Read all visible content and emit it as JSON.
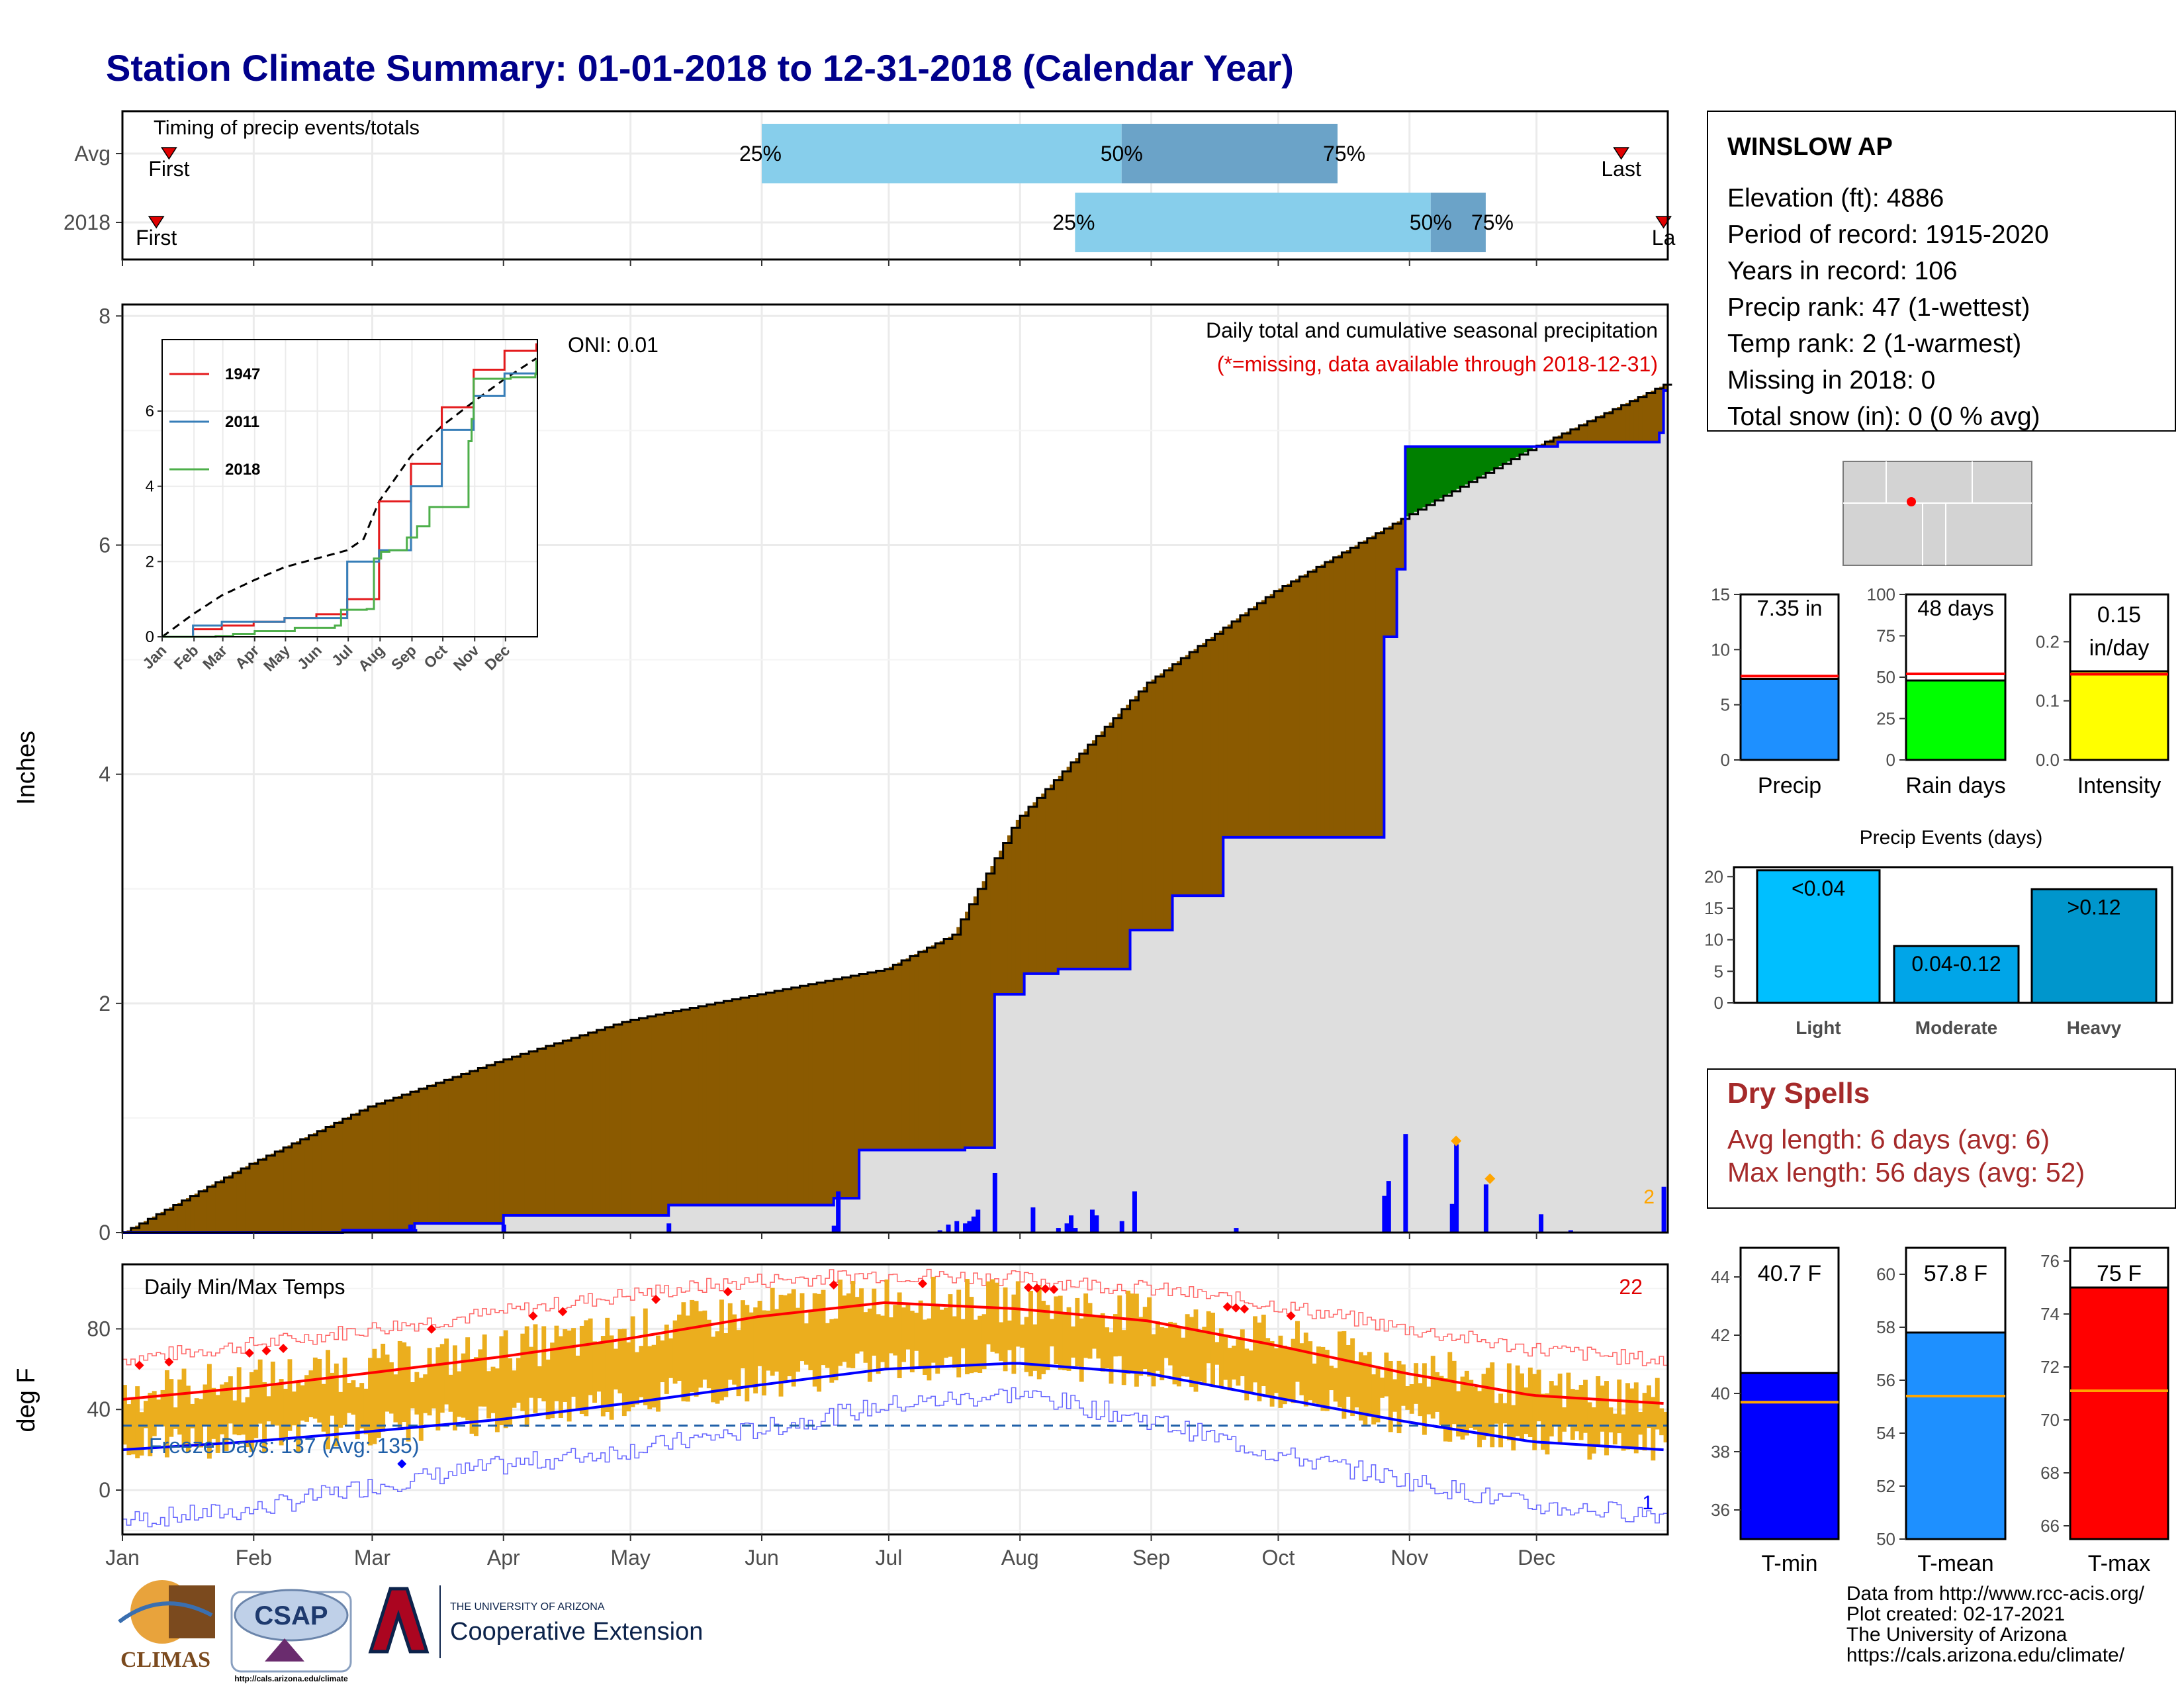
{
  "title": "Station Climate Summary: 01-01-2018 to 12-31-2018 (Calendar Year)",
  "timing_panel": {
    "label": "Timing of precip events/totals",
    "rows": [
      {
        "name": "Avg",
        "first_label": "First",
        "last_label": "Last",
        "first_day": 12,
        "last_day": 355,
        "p25": 152,
        "p50": 237,
        "p75": 288,
        "p25_label": "25%",
        "p50_label": "50%",
        "p75_label": "75%"
      },
      {
        "name": "2018",
        "first_label": "First",
        "last_label": "La",
        "first_day": 9,
        "last_day": 365,
        "p25": 226,
        "p50": 310,
        "p75": 323,
        "p25_label": "25%",
        "p50_label": "50%",
        "p75_label": "75%"
      }
    ]
  },
  "precip_panel": {
    "ylabel": "Inches",
    "yticks": [
      "0",
      "2",
      "4",
      "6",
      "8"
    ],
    "oni": "ONI: 0.01",
    "note1": "Daily total and cumulative seasonal precipitation",
    "note2": "(*=missing, data available through 2018-12-31)",
    "count_label": "2",
    "inset": {
      "legend": [
        "1947",
        "2011",
        "2018"
      ],
      "colors": [
        "#E41A1C",
        "#377EB8",
        "#4DAF4A"
      ],
      "yticks": [
        "0",
        "2",
        "4",
        "6"
      ],
      "months": [
        "Jan",
        "Feb",
        "Mar",
        "Apr",
        "May",
        "Jun",
        "Jul",
        "Aug",
        "Sep",
        "Oct",
        "Nov",
        "Dec"
      ]
    }
  },
  "temp_panel": {
    "ylabel": "deg F",
    "title": "Daily Min/Max Temps",
    "yticks": [
      "0",
      "40",
      "80"
    ],
    "record_high_count": "22",
    "record_low_count": "1",
    "freeze_label": "Freeze Days: 137 (Avg: 135)"
  },
  "months": [
    "Jan",
    "Feb",
    "Mar",
    "Apr",
    "May",
    "Jun",
    "Jul",
    "Aug",
    "Sep",
    "Oct",
    "Nov",
    "Dec"
  ],
  "station": {
    "name": "WINSLOW AP",
    "lines": [
      "Elevation (ft): 4886",
      "Period of record: 1915-2020",
      "Years in record: 106",
      "Precip rank: 47 (1-wettest)",
      "Temp rank: 2 (1-warmest)",
      "Missing in 2018: 0",
      "Total snow (in): 0 (0 % avg)"
    ]
  },
  "mini_bars": [
    {
      "label": "Precip",
      "value_label": "7.35 in",
      "value": 7.35,
      "avg": 7.6,
      "ymax": 15,
      "ticks": [
        "0",
        "5",
        "10",
        "15"
      ],
      "color": "#1E90FF"
    },
    {
      "label": "Rain days",
      "value_label": "48 days",
      "value": 48,
      "avg": 52,
      "ymax": 100,
      "ticks": [
        "0",
        "25",
        "50",
        "75",
        "100"
      ],
      "color": "#00FF00"
    },
    {
      "label": "Intensity",
      "value_label": "0.15 in/day",
      "value_line1": "0.15",
      "value_line2": "in/day",
      "value": 0.15,
      "avg": 0.145,
      "ymax": 0.28,
      "ticks": [
        "0.0",
        "0.1",
        "0.2"
      ],
      "color": "#FFFF00"
    }
  ],
  "events": {
    "title": "Precip Events (days)",
    "yticks": [
      "0",
      "5",
      "10",
      "15",
      "20"
    ],
    "bars": [
      {
        "name": "Light",
        "inner_label": "<0.04",
        "value": 21,
        "color": "#00BFFF"
      },
      {
        "name": "Moderate",
        "inner_label": "0.04-0.12",
        "value": 9,
        "color": "#00A5E8"
      },
      {
        "name": "Heavy",
        "inner_label": ">0.12",
        "value": 18,
        "color": "#0096CC"
      }
    ]
  },
  "dry_spells": {
    "title": "Dry Spells",
    "line1": "Avg length: 6 days (avg: 6)",
    "line2": "Max length: 56 days (avg: 52)",
    "color": "#A52A2A"
  },
  "temp_bars": [
    {
      "label": "T-min",
      "value_label": "40.7 F",
      "value": 40.7,
      "avg": 39.7,
      "ymin": 35,
      "ymax": 45,
      "ticks": [
        "36",
        "38",
        "40",
        "42",
        "44"
      ],
      "color": "#0000FF"
    },
    {
      "label": "T-mean",
      "value_label": "57.8 F",
      "value": 57.8,
      "avg": 55.4,
      "ymin": 50,
      "ymax": 61,
      "ticks": [
        "50",
        "52",
        "54",
        "56",
        "58",
        "60"
      ],
      "color": "#1E90FF"
    },
    {
      "label": "T-max",
      "value_label": "75 F",
      "value": 75,
      "avg": 71.1,
      "ymin": 65.5,
      "ymax": 76.5,
      "ticks": [
        "66",
        "68",
        "70",
        "72",
        "74",
        "76"
      ],
      "color": "#FF0000"
    }
  ],
  "footer": [
    "Data from http://www.rcc-acis.org/",
    "Plot created: 02-17-2021",
    "The University of Arizona",
    "https://cals.arizona.edu/climate/"
  ],
  "logos": {
    "climas": "CLIMAS",
    "csap": "CSAP",
    "csap_url": "http://cals.arizona.edu/climate",
    "ua_line1": "THE UNIVERSITY OF ARIZONA",
    "ua_line2": "Cooperative Extension"
  },
  "chart_data": [
    {
      "type": "area",
      "title": "Daily total and cumulative seasonal precipitation",
      "ylabel": "Inches",
      "ylim": [
        0,
        8.1
      ],
      "series": [
        {
          "name": "1947",
          "x": [
            1,
            31,
            59,
            90,
            120,
            151,
            181,
            212,
            243,
            273,
            304,
            334,
            365
          ],
          "values": [
            0,
            0.2,
            0.3,
            0.4,
            0.5,
            0.6,
            1.0,
            3.6,
            4.6,
            6.1,
            7.1,
            7.6,
            7.8
          ]
        },
        {
          "name": "2011",
          "x": [
            1,
            31,
            59,
            90,
            120,
            151,
            181,
            212,
            243,
            273,
            304,
            334,
            365
          ],
          "values": [
            0,
            0.3,
            0.4,
            0.4,
            0.5,
            0.5,
            2.0,
            2.3,
            4.0,
            5.5,
            6.4,
            7.0,
            7.3
          ]
        },
        {
          "name": "2018",
          "x": [
            1,
            53,
            70,
            91,
            130,
            169,
            175,
            200,
            207,
            214,
            222,
            239,
            249,
            261,
            275,
            299,
            302,
            304,
            340,
            364,
            365
          ],
          "values": [
            0,
            0.02,
            0.08,
            0.15,
            0.24,
            0.3,
            0.72,
            0.74,
            2.08,
            2.26,
            2.3,
            2.64,
            2.94,
            3.45,
            3.45,
            5.2,
            5.79,
            6.86,
            6.9,
            6.98,
            7.35
          ]
        }
      ],
      "average": {
        "x": [
          1,
          31,
          59,
          90,
          120,
          151,
          181,
          197,
          212,
          243,
          273,
          304,
          334,
          365
        ],
        "values": [
          0,
          0.6,
          1.1,
          1.5,
          1.85,
          2.08,
          2.3,
          2.6,
          3.6,
          4.8,
          5.6,
          6.25,
          6.85,
          7.4
        ]
      },
      "daily_precip": [
        {
          "x": 17,
          "y": 0.01
        },
        {
          "x": 53,
          "y": 0.01
        },
        {
          "x": 58,
          "y": 0.03
        },
        {
          "x": 69,
          "y": 0.07
        },
        {
          "x": 70,
          "y": 0.03
        },
        {
          "x": 91,
          "y": 0.07
        },
        {
          "x": 130,
          "y": 0.08
        },
        {
          "x": 169,
          "y": 0.06
        },
        {
          "x": 170,
          "y": 0.36
        },
        {
          "x": 194,
          "y": 0.02
        },
        {
          "x": 196,
          "y": 0.07
        },
        {
          "x": 198,
          "y": 0.1
        },
        {
          "x": 200,
          "y": 0.08
        },
        {
          "x": 201,
          "y": 0.1
        },
        {
          "x": 202,
          "y": 0.14
        },
        {
          "x": 203,
          "y": 0.2
        },
        {
          "x": 207,
          "y": 0.52
        },
        {
          "x": 216,
          "y": 0.22
        },
        {
          "x": 222,
          "y": 0.04
        },
        {
          "x": 224,
          "y": 0.08
        },
        {
          "x": 225,
          "y": 0.15
        },
        {
          "x": 226,
          "y": 0.04
        },
        {
          "x": 230,
          "y": 0.2
        },
        {
          "x": 231,
          "y": 0.15
        },
        {
          "x": 237,
          "y": 0.1
        },
        {
          "x": 240,
          "y": 0.36
        },
        {
          "x": 264,
          "y": 0.04
        },
        {
          "x": 299,
          "y": 0.32
        },
        {
          "x": 300,
          "y": 0.45
        },
        {
          "x": 304,
          "y": 0.86
        },
        {
          "x": 315,
          "y": 0.25
        },
        {
          "x": 316,
          "y": 0.77
        },
        {
          "x": 323,
          "y": 0.42
        },
        {
          "x": 336,
          "y": 0.16
        },
        {
          "x": 343,
          "y": 0.02
        },
        {
          "x": 365,
          "y": 0.4
        }
      ]
    },
    {
      "type": "line",
      "title": "Daily Min/Max Temps",
      "ylabel": "deg F",
      "ylim": [
        -22,
        112
      ],
      "series": [
        {
          "name": "avg max",
          "x": [
            1,
            31,
            59,
            90,
            120,
            151,
            181,
            212,
            243,
            273,
            304,
            334,
            365
          ],
          "values": [
            45,
            51,
            58,
            66,
            75,
            86,
            93,
            90,
            84,
            72,
            58,
            47,
            43
          ]
        },
        {
          "name": "avg min",
          "x": [
            1,
            31,
            59,
            90,
            120,
            151,
            181,
            212,
            243,
            273,
            304,
            334,
            365
          ],
          "values": [
            20,
            24,
            29,
            35,
            43,
            52,
            60,
            63,
            58,
            46,
            34,
            24,
            20
          ]
        },
        {
          "name": "record max",
          "x": [
            1,
            31,
            59,
            90,
            120,
            151,
            181,
            212,
            243,
            273,
            304,
            334,
            365
          ],
          "values": [
            65,
            72,
            80,
            88,
            97,
            104,
            107,
            105,
            100,
            92,
            80,
            70,
            64
          ]
        },
        {
          "name": "record min",
          "x": [
            1,
            31,
            59,
            90,
            120,
            151,
            181,
            212,
            243,
            273,
            304,
            334,
            365
          ],
          "values": [
            -15,
            -10,
            2,
            12,
            20,
            30,
            42,
            48,
            35,
            18,
            5,
            -8,
            -12
          ]
        }
      ],
      "freeze_threshold": 32
    }
  ]
}
